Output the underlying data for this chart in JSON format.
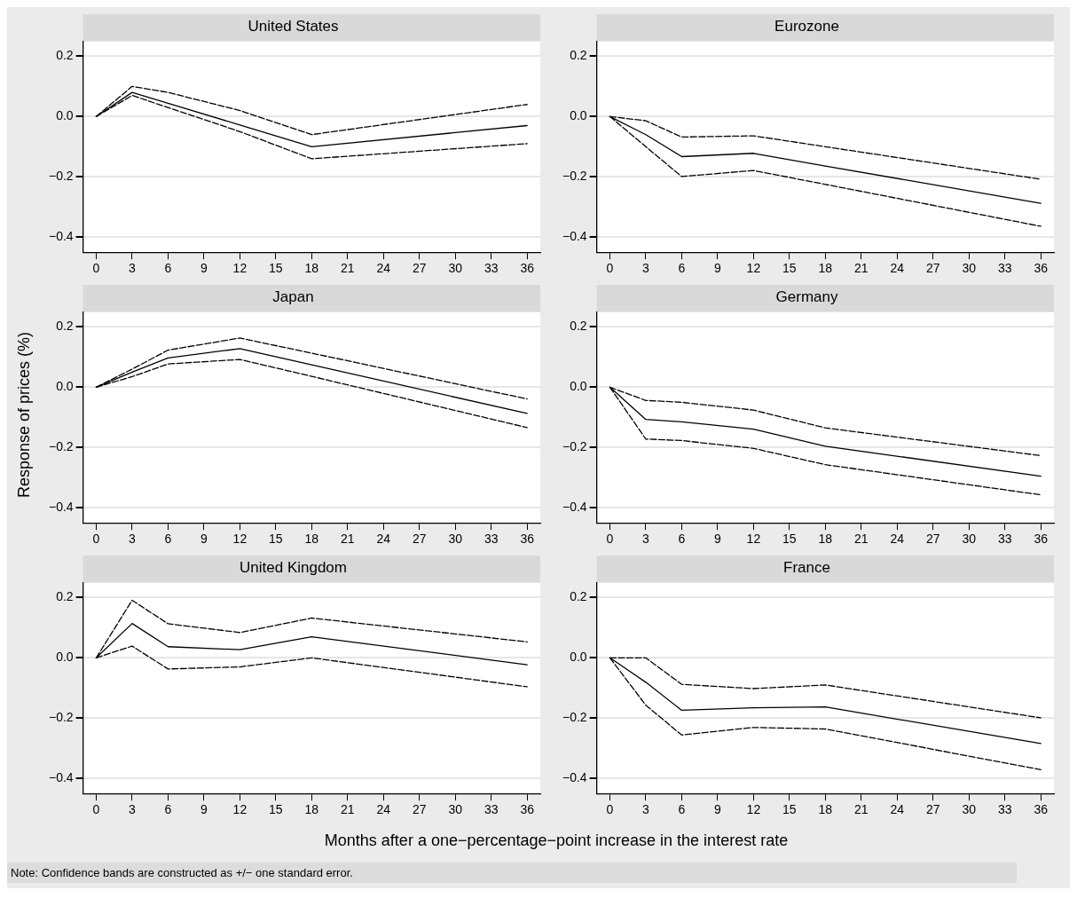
{
  "chart_data": [
    {
      "type": "line",
      "title": "United States",
      "x": [
        0,
        3,
        6,
        12,
        18,
        36
      ],
      "xlim": [
        -1.1,
        37.1
      ],
      "xticks": [
        0,
        3,
        6,
        9,
        12,
        15,
        18,
        21,
        24,
        27,
        30,
        33,
        36
      ],
      "ylim": [
        -0.45,
        0.25
      ],
      "yticks": [
        {
          "value": -0.4,
          "label": "−0.4"
        },
        {
          "value": -0.2,
          "label": "−0.2"
        },
        {
          "value": 0,
          "label": "0.0"
        },
        {
          "value": 0.2,
          "label": "0.2"
        }
      ],
      "grid": "y",
      "series": [
        {
          "color": "#000000",
          "line_style": "solid",
          "values": [
            0,
            0.08,
            0.044,
            -0.028,
            -0.1,
            -0.03
          ]
        },
        {
          "color": "#000000",
          "line_style": "dashed",
          "values": [
            0,
            0.1,
            0.08,
            0.02,
            -0.06,
            0.04
          ]
        },
        {
          "color": "#000000",
          "line_style": "dashed",
          "values": [
            0,
            0.07,
            0.03,
            -0.05,
            -0.14,
            -0.09
          ]
        }
      ]
    },
    {
      "type": "line",
      "title": "Eurozone",
      "x": [
        0,
        3,
        6,
        12,
        18,
        36
      ],
      "xlim": [
        -1.1,
        37.1
      ],
      "xticks": [
        0,
        3,
        6,
        9,
        12,
        15,
        18,
        21,
        24,
        27,
        30,
        33,
        36
      ],
      "ylim": [
        -0.45,
        0.25
      ],
      "yticks": [
        {
          "value": -0.4,
          "label": "−0.4"
        },
        {
          "value": -0.2,
          "label": "−0.2"
        },
        {
          "value": 0,
          "label": "0.0"
        },
        {
          "value": 0.2,
          "label": "0.2"
        }
      ],
      "grid": "y",
      "series": [
        {
          "color": "#000000",
          "line_style": "solid",
          "values": [
            0,
            -0.06,
            -0.133,
            -0.122,
            -0.164,
            -0.288
          ]
        },
        {
          "color": "#000000",
          "line_style": "dashed",
          "values": [
            0,
            -0.014,
            -0.068,
            -0.064,
            -0.1,
            -0.208
          ]
        },
        {
          "color": "#000000",
          "line_style": "dashed",
          "values": [
            0,
            -0.1,
            -0.199,
            -0.179,
            -0.225,
            -0.364
          ]
        }
      ]
    },
    {
      "type": "line",
      "title": "Japan",
      "ylabel": "Response of prices (%)",
      "x": [
        0,
        3,
        6,
        12,
        18,
        36
      ],
      "xlim": [
        -1.1,
        37.1
      ],
      "xticks": [
        0,
        3,
        6,
        9,
        12,
        15,
        18,
        21,
        24,
        27,
        30,
        33,
        36
      ],
      "ylim": [
        -0.45,
        0.25
      ],
      "yticks": [
        {
          "value": -0.4,
          "label": "−0.4"
        },
        {
          "value": -0.2,
          "label": "−0.2"
        },
        {
          "value": 0,
          "label": "0.0"
        },
        {
          "value": 0.2,
          "label": "0.2"
        }
      ],
      "grid": "y",
      "series": [
        {
          "color": "#000000",
          "line_style": "solid",
          "values": [
            0,
            0.05,
            0.097,
            0.128,
            0.074,
            -0.087
          ]
        },
        {
          "color": "#000000",
          "line_style": "dashed",
          "values": [
            0,
            0.06,
            0.123,
            0.163,
            0.113,
            -0.039
          ]
        },
        {
          "color": "#000000",
          "line_style": "dashed",
          "values": [
            0,
            0.035,
            0.077,
            0.092,
            0.036,
            -0.134
          ]
        }
      ]
    },
    {
      "type": "line",
      "title": "Germany",
      "x": [
        0,
        3,
        6,
        12,
        18,
        36
      ],
      "xlim": [
        -1.1,
        37.1
      ],
      "xticks": [
        0,
        3,
        6,
        9,
        12,
        15,
        18,
        21,
        24,
        27,
        30,
        33,
        36
      ],
      "ylim": [
        -0.45,
        0.25
      ],
      "yticks": [
        {
          "value": -0.4,
          "label": "−0.4"
        },
        {
          "value": -0.2,
          "label": "−0.2"
        },
        {
          "value": 0,
          "label": "0.0"
        },
        {
          "value": 0.2,
          "label": "0.2"
        }
      ],
      "grid": "y",
      "series": [
        {
          "color": "#000000",
          "line_style": "solid",
          "values": [
            0,
            -0.107,
            -0.115,
            -0.139,
            -0.196,
            -0.295
          ]
        },
        {
          "color": "#000000",
          "line_style": "dashed",
          "values": [
            0,
            -0.044,
            -0.05,
            -0.076,
            -0.135,
            -0.227
          ]
        },
        {
          "color": "#000000",
          "line_style": "dashed",
          "values": [
            0,
            -0.172,
            -0.177,
            -0.203,
            -0.257,
            -0.357
          ]
        }
      ]
    },
    {
      "type": "line",
      "title": "United Kingdom",
      "xlabel": "Months after a one−percentage−point increase in the interest rate",
      "annotations": [
        "Note: Confidence bands are constructed as +/− one standard error."
      ],
      "x": [
        0,
        3,
        6,
        12,
        18,
        36
      ],
      "xlim": [
        -1.1,
        37.1
      ],
      "xticks": [
        0,
        3,
        6,
        9,
        12,
        15,
        18,
        21,
        24,
        27,
        30,
        33,
        36
      ],
      "ylim": [
        -0.45,
        0.25
      ],
      "yticks": [
        {
          "value": -0.4,
          "label": "−0.4"
        },
        {
          "value": -0.2,
          "label": "−0.2"
        },
        {
          "value": 0,
          "label": "0.0"
        },
        {
          "value": 0.2,
          "label": "0.2"
        }
      ],
      "grid": "y",
      "series": [
        {
          "color": "#000000",
          "line_style": "solid",
          "values": [
            0,
            0.114,
            0.037,
            0.027,
            0.07,
            -0.023
          ]
        },
        {
          "color": "#000000",
          "line_style": "dashed",
          "values": [
            0,
            0.191,
            0.113,
            0.084,
            0.132,
            0.053
          ]
        },
        {
          "color": "#000000",
          "line_style": "dashed",
          "values": [
            0,
            0.039,
            -0.037,
            -0.03,
            0.0,
            -0.096
          ]
        }
      ]
    },
    {
      "type": "line",
      "title": "France",
      "x": [
        0,
        3,
        6,
        12,
        18,
        36
      ],
      "xlim": [
        -1.1,
        37.1
      ],
      "xticks": [
        0,
        3,
        6,
        9,
        12,
        15,
        18,
        21,
        24,
        27,
        30,
        33,
        36
      ],
      "ylim": [
        -0.45,
        0.25
      ],
      "yticks": [
        {
          "value": -0.4,
          "label": "−0.4"
        },
        {
          "value": -0.2,
          "label": "−0.2"
        },
        {
          "value": 0,
          "label": "0.0"
        },
        {
          "value": 0.2,
          "label": "0.2"
        }
      ],
      "grid": "y",
      "series": [
        {
          "color": "#000000",
          "line_style": "solid",
          "values": [
            0,
            -0.081,
            -0.174,
            -0.166,
            -0.163,
            -0.284
          ]
        },
        {
          "color": "#000000",
          "line_style": "dashed",
          "values": [
            0,
            0.0,
            -0.088,
            -0.102,
            -0.09,
            -0.199
          ]
        },
        {
          "color": "#000000",
          "line_style": "dashed",
          "values": [
            0,
            -0.157,
            -0.256,
            -0.231,
            -0.236,
            -0.371
          ]
        }
      ]
    }
  ]
}
